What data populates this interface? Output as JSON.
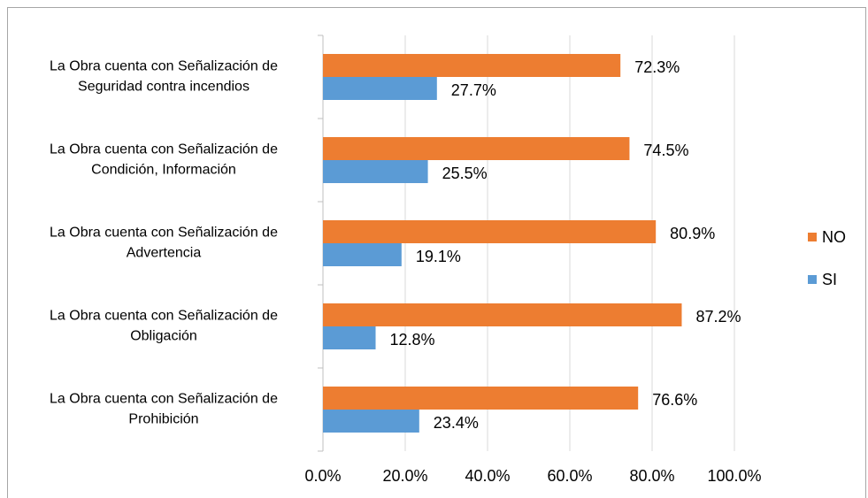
{
  "chart_data": {
    "type": "hbar",
    "categories": [
      "La Obra cuenta con Señalización de\nSeguridad contra incendios",
      "La Obra cuenta con Señalización de\nCondición, Información",
      "La Obra cuenta con Señalización de\nAdvertencia",
      "La Obra cuenta con Señalización de\nObligación",
      "La Obra cuenta con Señalización de\nProhibición"
    ],
    "series": [
      {
        "name": "NO",
        "color": "#ed7d31",
        "values": [
          72.3,
          74.5,
          80.9,
          87.2,
          76.6
        ],
        "value_labels": [
          "72.3%",
          "74.5%",
          "80.9%",
          "87.2%",
          "76.6%"
        ]
      },
      {
        "name": "SI",
        "color": "#5b9bd5",
        "values": [
          27.7,
          25.5,
          19.1,
          12.8,
          23.4
        ],
        "value_labels": [
          "27.7%",
          "25.5%",
          "19.1%",
          "12.8%",
          "23.4%"
        ]
      }
    ],
    "xlim": [
      0,
      100
    ],
    "xticks": [
      {
        "value": 0,
        "label": "0.0%"
      },
      {
        "value": 20,
        "label": "20.0%"
      },
      {
        "value": 40,
        "label": "40.0%"
      },
      {
        "value": 60,
        "label": "60.0%"
      },
      {
        "value": 80,
        "label": "80.0%"
      },
      {
        "value": 100,
        "label": "100.0%"
      }
    ],
    "grid": true,
    "legend": "right"
  }
}
